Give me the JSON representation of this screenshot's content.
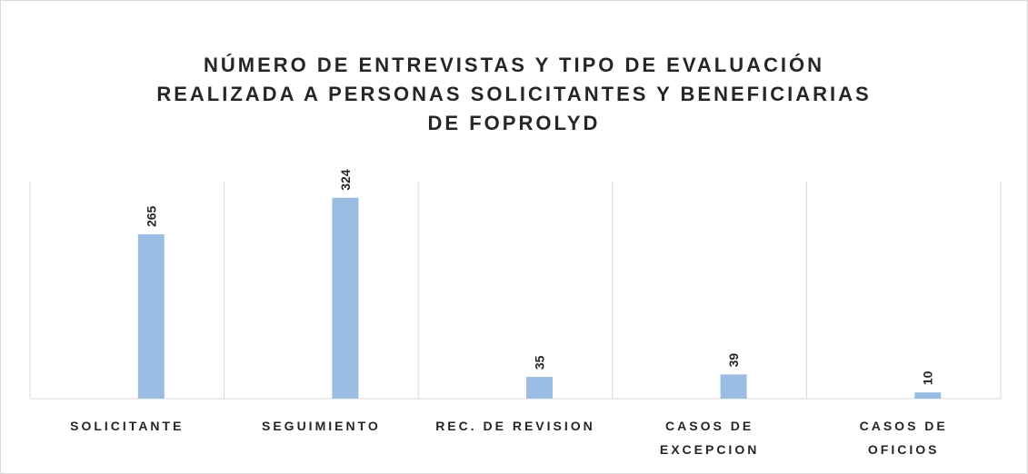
{
  "chart_data": {
    "type": "bar",
    "title": "NÚMERO DE ENTREVISTAS Y TIPO DE EVALUACIÓN\nREALIZADA A PERSONAS SOLICITANTES Y BENEFICIARIAS\nDE FOPROLYD",
    "categories": [
      "SOLICITANTE",
      "SEGUIMIENTO",
      "REC. DE REVISION",
      "CASOS DE\nEXCEPCION",
      "CASOS DE\nOFICIOS"
    ],
    "values": [
      265,
      324,
      35,
      39,
      10
    ],
    "color": "#9bbde3",
    "ylim": [
      0,
      350
    ]
  }
}
